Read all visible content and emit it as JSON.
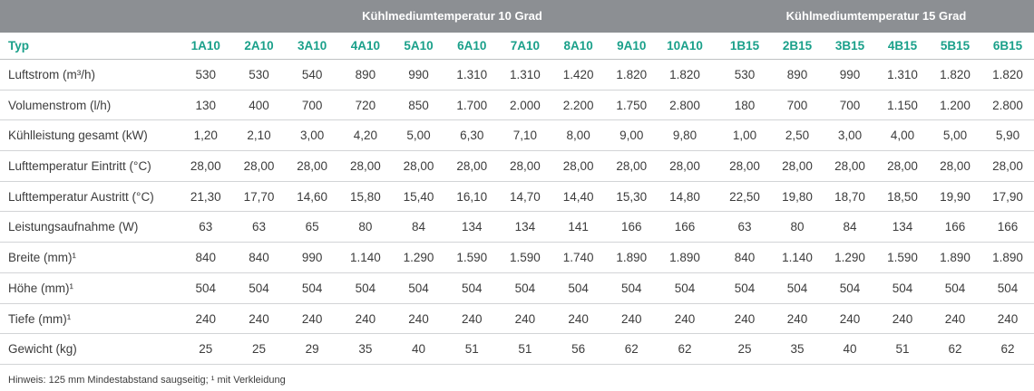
{
  "groups": [
    "Kühlmediumtemperatur 10 Grad",
    "Kühlmediumtemperatur 15 Grad"
  ],
  "header": {
    "label": "Typ",
    "types_10": [
      "1A10",
      "2A10",
      "3A10",
      "4A10",
      "5A10",
      "6A10",
      "7A10",
      "8A10",
      "9A10",
      "10A10"
    ],
    "types_15": [
      "1B15",
      "2B15",
      "3B15",
      "4B15",
      "5B15",
      "6B15"
    ]
  },
  "rows": [
    {
      "label": "Luftstrom (m³/h)",
      "v10": [
        "530",
        "530",
        "540",
        "890",
        "990",
        "1.310",
        "1.310",
        "1.420",
        "1.820",
        "1.820"
      ],
      "v15": [
        "530",
        "890",
        "990",
        "1.310",
        "1.820",
        "1.820"
      ]
    },
    {
      "label": "Volumenstrom (l/h)",
      "v10": [
        "130",
        "400",
        "700",
        "720",
        "850",
        "1.700",
        "2.000",
        "2.200",
        "1.750",
        "2.800"
      ],
      "v15": [
        "180",
        "700",
        "700",
        "1.150",
        "1.200",
        "2.800"
      ]
    },
    {
      "label": "Kühlleistung gesamt (kW)",
      "v10": [
        "1,20",
        "2,10",
        "3,00",
        "4,20",
        "5,00",
        "6,30",
        "7,10",
        "8,00",
        "9,00",
        "9,80"
      ],
      "v15": [
        "1,00",
        "2,50",
        "3,00",
        "4,00",
        "5,00",
        "5,90"
      ]
    },
    {
      "label": "Lufttemperatur Eintritt (°C)",
      "v10": [
        "28,00",
        "28,00",
        "28,00",
        "28,00",
        "28,00",
        "28,00",
        "28,00",
        "28,00",
        "28,00",
        "28,00"
      ],
      "v15": [
        "28,00",
        "28,00",
        "28,00",
        "28,00",
        "28,00",
        "28,00"
      ]
    },
    {
      "label": "Lufttemperatur Austritt (°C)",
      "v10": [
        "21,30",
        "17,70",
        "14,60",
        "15,80",
        "15,40",
        "16,10",
        "14,70",
        "14,40",
        "15,30",
        "14,80"
      ],
      "v15": [
        "22,50",
        "19,80",
        "18,70",
        "18,50",
        "19,90",
        "17,90"
      ]
    },
    {
      "label": "Leistungsaufnahme (W)",
      "v10": [
        "63",
        "63",
        "65",
        "80",
        "84",
        "134",
        "134",
        "141",
        "166",
        "166"
      ],
      "v15": [
        "63",
        "80",
        "84",
        "134",
        "166",
        "166"
      ]
    },
    {
      "label": "Breite (mm)¹",
      "v10": [
        "840",
        "840",
        "990",
        "1.140",
        "1.290",
        "1.590",
        "1.590",
        "1.740",
        "1.890",
        "1.890"
      ],
      "v15": [
        "840",
        "1.140",
        "1.290",
        "1.590",
        "1.890",
        "1.890"
      ]
    },
    {
      "label": "Höhe (mm)¹",
      "v10": [
        "504",
        "504",
        "504",
        "504",
        "504",
        "504",
        "504",
        "504",
        "504",
        "504"
      ],
      "v15": [
        "504",
        "504",
        "504",
        "504",
        "504",
        "504"
      ]
    },
    {
      "label": "Tiefe (mm)¹",
      "v10": [
        "240",
        "240",
        "240",
        "240",
        "240",
        "240",
        "240",
        "240",
        "240",
        "240"
      ],
      "v15": [
        "240",
        "240",
        "240",
        "240",
        "240",
        "240"
      ]
    },
    {
      "label": "Gewicht (kg)",
      "v10": [
        "25",
        "25",
        "29",
        "35",
        "40",
        "51",
        "51",
        "56",
        "62",
        "62"
      ],
      "v15": [
        "25",
        "35",
        "40",
        "51",
        "62",
        "62"
      ]
    }
  ],
  "footnote": "Hinweis: 125 mm Mindestabstand saugseitig; ¹ mit Verkleidung",
  "colors": {
    "header_bg": "#8c8f93",
    "accent": "#1aa08a",
    "text": "#3c3c3c"
  }
}
